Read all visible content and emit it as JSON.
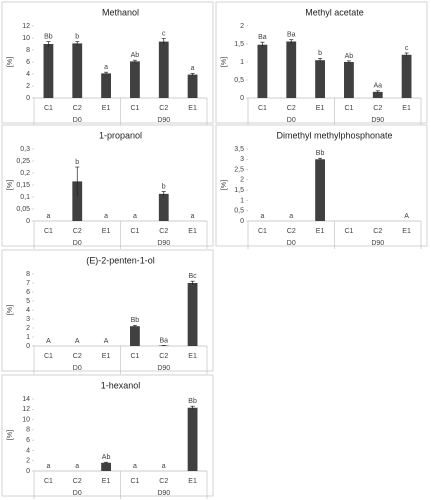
{
  "chart_data": [
    {
      "type": "bar",
      "title": "Methanol",
      "ylabel": "[%]",
      "categories": [
        "C1",
        "C2",
        "E1",
        "C1",
        "C2",
        "E1"
      ],
      "groups": [
        "D0",
        "D90"
      ],
      "values": [
        9,
        9.1,
        4.1,
        6.1,
        9.4,
        3.9
      ],
      "errors": [
        0.4,
        0.3,
        0.2,
        0.2,
        0.5,
        0.2
      ],
      "letters": [
        "Bb",
        "b",
        "a",
        "Ab",
        "c",
        "a"
      ],
      "color": "#404040",
      "ylim": [
        0,
        12
      ],
      "yticks": [
        0,
        2,
        4,
        6,
        8,
        10,
        12
      ]
    },
    {
      "type": "bar",
      "title": "Methyl acetate",
      "ylabel": "[%]",
      "categories": [
        "C1",
        "C2",
        "E1",
        "C1",
        "C2",
        "E1"
      ],
      "groups": [
        "D0",
        "D90"
      ],
      "values": [
        1.48,
        1.57,
        1.05,
        1.0,
        0.17,
        1.2
      ],
      "errors": [
        0.07,
        0.05,
        0.05,
        0.03,
        0.03,
        0.05
      ],
      "letters": [
        "Ba",
        "Ba",
        "b",
        "Ab",
        "Aa",
        "c"
      ],
      "color": "#404040",
      "ylim": [
        0,
        2
      ],
      "yticks": [
        0,
        {
          "value": 0.5,
          "label": "0,5"
        },
        1,
        {
          "value": 1.5,
          "label": "1,5"
        },
        2
      ]
    },
    {
      "type": "bar",
      "title": "1-propanol",
      "ylabel": "[%]",
      "categories": [
        "C1",
        "C2",
        "E1",
        "C1",
        "C2",
        "E1"
      ],
      "groups": [
        "D0",
        "D90"
      ],
      "values": [
        0,
        0.165,
        0,
        0,
        0.113,
        0
      ],
      "errors": [
        0,
        0.06,
        0,
        0,
        0.01,
        0
      ],
      "letters": [
        "a",
        "b",
        "a",
        "a",
        "b",
        "a"
      ],
      "color": "#404040",
      "ylim": [
        0,
        0.3
      ],
      "yticks": [
        0,
        {
          "value": 0.05,
          "label": "0,05"
        },
        {
          "value": 0.1,
          "label": "0,1"
        },
        {
          "value": 0.15,
          "label": "0,15"
        },
        {
          "value": 0.2,
          "label": "0,2"
        },
        {
          "value": 0.25,
          "label": "0,25"
        },
        {
          "value": 0.3,
          "label": "0,3"
        }
      ]
    },
    {
      "type": "bar",
      "title": "Dimethyl methylphosphonate",
      "ylabel": "[%]",
      "categories": [
        "C1",
        "C2",
        "E1",
        "C1",
        "C2",
        "E1"
      ],
      "groups": [
        "D0",
        "D90"
      ],
      "values": [
        0,
        0,
        3.0,
        0,
        0,
        0
      ],
      "errors": [
        0,
        0,
        0.05,
        0,
        0,
        0
      ],
      "letters": [
        "a",
        "a",
        "Bb",
        null,
        null,
        "A"
      ],
      "color": "#404040",
      "ylim": [
        0,
        3.5
      ],
      "yticks": [
        0,
        {
          "value": 0.5,
          "label": "0,5"
        },
        1,
        {
          "value": 1.5,
          "label": "1,5"
        },
        2,
        {
          "value": 2.5,
          "label": "2,5"
        },
        3,
        {
          "value": 3.5,
          "label": "3,5"
        }
      ]
    },
    {
      "type": "bar",
      "title": "(E)-2-penten-1-ol",
      "ylabel": "[%]",
      "categories": [
        "C1",
        "C2",
        "E1",
        "C1",
        "C2",
        "E1"
      ],
      "groups": [
        "D0",
        "D90"
      ],
      "values": [
        0,
        0,
        0,
        2.2,
        0.05,
        7.0
      ],
      "errors": [
        0,
        0,
        0,
        0.1,
        0.01,
        0.2
      ],
      "letters": [
        "A",
        "A",
        "A",
        "Bb",
        "Ba",
        "Bc"
      ],
      "color": "#404040",
      "ylim": [
        0,
        8
      ],
      "yticks": [
        0,
        1,
        2,
        3,
        4,
        5,
        6,
        7,
        8
      ]
    },
    {
      "type": "bar",
      "title": "1-hexanol",
      "ylabel": "[%]",
      "categories": [
        "C1",
        "C2",
        "E1",
        "C1",
        "C2",
        "E1"
      ],
      "groups": [
        "D0",
        "D90"
      ],
      "values": [
        0,
        0,
        1.6,
        0,
        0,
        12.3
      ],
      "errors": [
        0,
        0,
        0.1,
        0,
        0,
        0.3
      ],
      "letters": [
        "a",
        "a",
        "Ab",
        "a",
        "a",
        "Bb"
      ],
      "color": "#404040",
      "ylim": [
        0,
        14
      ],
      "yticks": [
        0,
        2,
        4,
        6,
        8,
        10,
        12,
        14
      ]
    }
  ]
}
